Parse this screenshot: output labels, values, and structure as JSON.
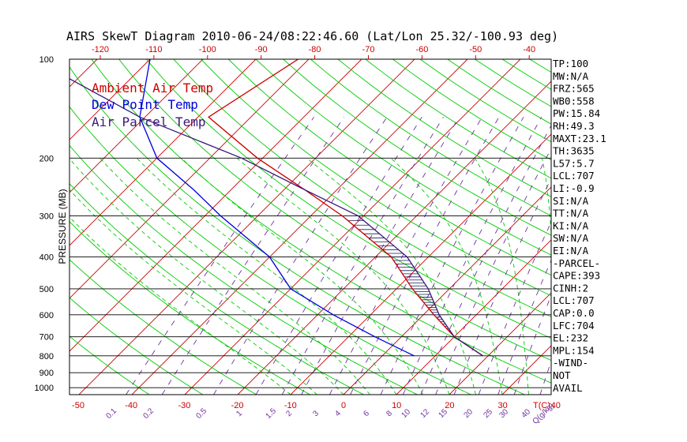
{
  "title": "AIRS SkewT Diagram 2010-06-24/08:22:46.60 (Lat/Lon 25.32/-100.93 deg)",
  "ylabel": "PRESSURE (MB)",
  "colors": {
    "ambient": "#cc0000",
    "dewpoint": "#0000dd",
    "parcel": "#3a1a7a",
    "dry_adiabat": "#00cc00",
    "isotherm": "#cc0000",
    "mixing_ratio": "#7030a0",
    "moist_adiabat": "#00cc00",
    "isobar": "#000000"
  },
  "legend": {
    "ambient": "Ambient Air Temp",
    "dewpoint": "Dew Point Temp",
    "parcel": "Air Parcel Temp"
  },
  "chart_data": {
    "type": "line",
    "title": "AIRS SkewT Diagram 2010-06-24/08:22:46.60 (Lat/Lon 25.32/-100.93 deg)",
    "ylabel": "PRESSURE (MB)",
    "y_scale": "log",
    "y_ticks": [
      "100",
      "200",
      "300",
      "400",
      "500",
      "600",
      "700",
      "800",
      "900",
      "1000"
    ],
    "y_tick_values": [
      100,
      200,
      300,
      400,
      500,
      600,
      700,
      800,
      900,
      1000
    ],
    "top_t_ticks": [
      "-120",
      "-110",
      "-100",
      "-90",
      "-80",
      "-70",
      "-60",
      "-50",
      "-40"
    ],
    "bottom_t_ticks": [
      "-50",
      "-40",
      "-30",
      "-20",
      "-10",
      "0",
      "10",
      "20",
      "30",
      "40",
      "T(C)"
    ],
    "mixing_ratio_labels": [
      "0.1",
      "0.2",
      "0.5",
      "1",
      "1.5",
      "2",
      "3",
      "4",
      "6",
      "8",
      "10",
      "12",
      "15",
      "20",
      "25",
      "30",
      "40",
      "Q(g/kg)"
    ],
    "series": [
      {
        "name": "Ambient Air Temp",
        "pressure": [
          100,
          150,
          200,
          250,
          300,
          400,
          500,
          600,
          700,
          800
        ],
        "temp_c": [
          -72,
          -78,
          -61,
          -46,
          -34,
          -17,
          -7,
          2,
          10,
          19
        ]
      },
      {
        "name": "Dew Point Temp",
        "pressure": [
          100,
          150,
          200,
          250,
          300,
          400,
          500,
          600,
          700,
          800
        ],
        "temp_c": [
          -100,
          -91,
          -80,
          -67,
          -57,
          -40,
          -30,
          -17,
          -5,
          6
        ]
      },
      {
        "name": "Air Parcel Temp",
        "pressure": [
          100,
          150,
          200,
          250,
          300,
          400,
          500,
          600,
          700,
          800
        ],
        "temp_c": [
          -122,
          -91,
          -64,
          -46,
          -31,
          -14,
          -4,
          3,
          10,
          19
        ]
      }
    ]
  },
  "indices": [
    "TP:100",
    "MW:N/A",
    "FRZ:565",
    "WB0:558",
    "PW:15.84",
    "RH:49.3",
    "MAXT:23.1",
    "TH:3635",
    "L57:5.7",
    "LCL:707",
    "LI:-0.9",
    "SI:N/A",
    "TT:N/A",
    "KI:N/A",
    "SW:N/A",
    "EI:N/A",
    "-PARCEL-",
    "CAPE:393",
    "CINH:2",
    "LCL:707",
    "CAP:0.0",
    "LFC:704",
    "EL:232",
    "MPL:154",
    "-WIND-",
    "NOT",
    "AVAIL"
  ]
}
